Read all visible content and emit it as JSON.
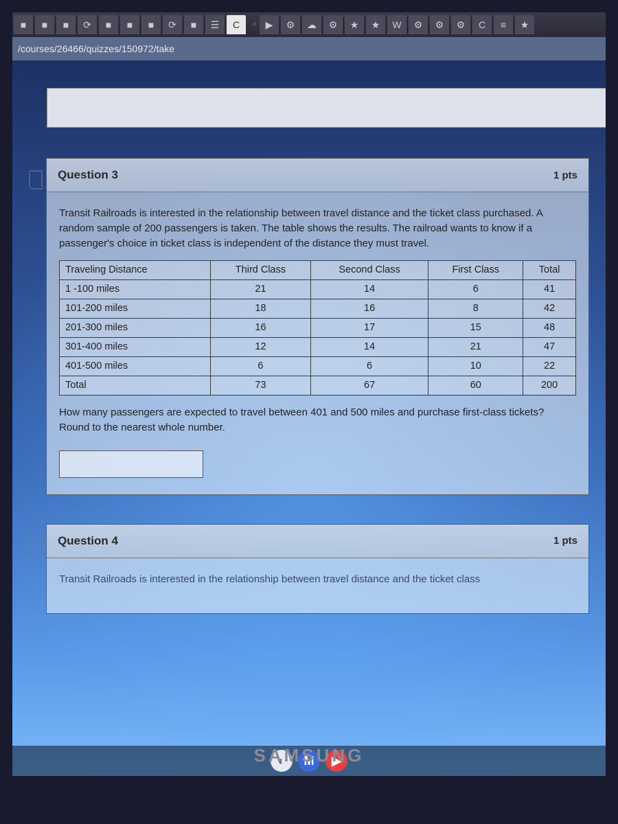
{
  "url": "/courses/26466/quizzes/150972/take",
  "tabs": {
    "icons": [
      "■",
      "■",
      "■",
      "⟳",
      "■",
      "■",
      "■",
      "⟳",
      "■",
      "☰",
      "C"
    ],
    "right_icons": [
      "▶",
      "⚙",
      "☁",
      "⚙",
      "★",
      "★",
      "W",
      "⚙",
      "⚙",
      "⚙",
      "C",
      "≡",
      "★"
    ]
  },
  "q3": {
    "title": "Question 3",
    "points": "1 pts",
    "intro": "Transit Railroads is interested in the relationship between travel distance and the ticket class purchased. A random sample of 200 passengers is taken. The table shows the results. The railroad wants to know if a passenger's choice in ticket class is independent of the distance they must travel.",
    "columns": [
      "Traveling Distance",
      "Third Class",
      "Second Class",
      "First Class",
      "Total"
    ],
    "rows": [
      [
        "1 -100 miles",
        "21",
        "14",
        "6",
        "41"
      ],
      [
        "101-200 miles",
        "18",
        "16",
        "8",
        "42"
      ],
      [
        "201-300 miles",
        "16",
        "17",
        "15",
        "48"
      ],
      [
        "301-400 miles",
        "12",
        "14",
        "21",
        "47"
      ],
      [
        "401-500 miles",
        "6",
        "6",
        "10",
        "22"
      ],
      [
        "Total",
        "73",
        "67",
        "60",
        "200"
      ]
    ],
    "follow": "How many passengers are expected to travel between 401 and 500 miles and purchase first-class tickets? Round to the nearest whole number.",
    "answer": ""
  },
  "q4": {
    "title": "Question 4",
    "points": "1 pts",
    "intro": "Transit Railroads is interested in the relationship between travel distance and the ticket class"
  },
  "taskbar": {
    "cortana": "◐",
    "mail": "M",
    "media": "▶"
  },
  "brand": "SAMSUNG",
  "colors": {
    "cortana": "#e8e8f0",
    "mail_bg": "#3a6ad8",
    "media_bg": "#e84040"
  }
}
